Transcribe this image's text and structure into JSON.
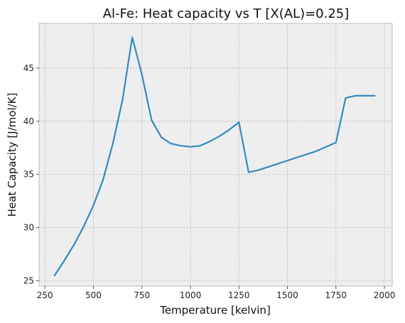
{
  "chart_data": {
    "type": "line",
    "title": "Al-Fe: Heat capacity vs T [X(AL)=0.25]",
    "xlabel": "Temperature [kelvin]",
    "ylabel": "Heat Capacity [J/mol/K]",
    "xlim": [
      220,
      2040
    ],
    "ylim": [
      24.5,
      49.2
    ],
    "xticks": [
      250,
      500,
      750,
      1000,
      1250,
      1500,
      1750,
      2000
    ],
    "yticks": [
      25,
      30,
      35,
      40,
      45
    ],
    "grid": true,
    "colors": {
      "line": "#348abd",
      "plot_bg": "#eeeeee",
      "grid": "#b2b2b2",
      "spine": "#bcbcbc"
    },
    "series": [
      {
        "x": [
          300,
          350,
          400,
          450,
          500,
          550,
          600,
          650,
          700,
          750,
          800,
          850,
          900,
          950,
          1000,
          1050,
          1100,
          1150,
          1200,
          1250,
          1300,
          1350,
          1400,
          1450,
          1500,
          1550,
          1600,
          1650,
          1700,
          1750,
          1800,
          1850,
          1900,
          1950
        ],
        "y": [
          25.5,
          26.9,
          28.4,
          30.1,
          32.1,
          34.5,
          37.9,
          42.0,
          47.9,
          44.4,
          40.1,
          38.5,
          37.9,
          37.7,
          37.6,
          37.7,
          38.1,
          38.6,
          39.2,
          39.9,
          35.2,
          35.4,
          35.7,
          36.0,
          36.3,
          36.6,
          36.9,
          37.2,
          37.6,
          38.0,
          42.2,
          42.4,
          42.4,
          42.4
        ]
      }
    ]
  }
}
